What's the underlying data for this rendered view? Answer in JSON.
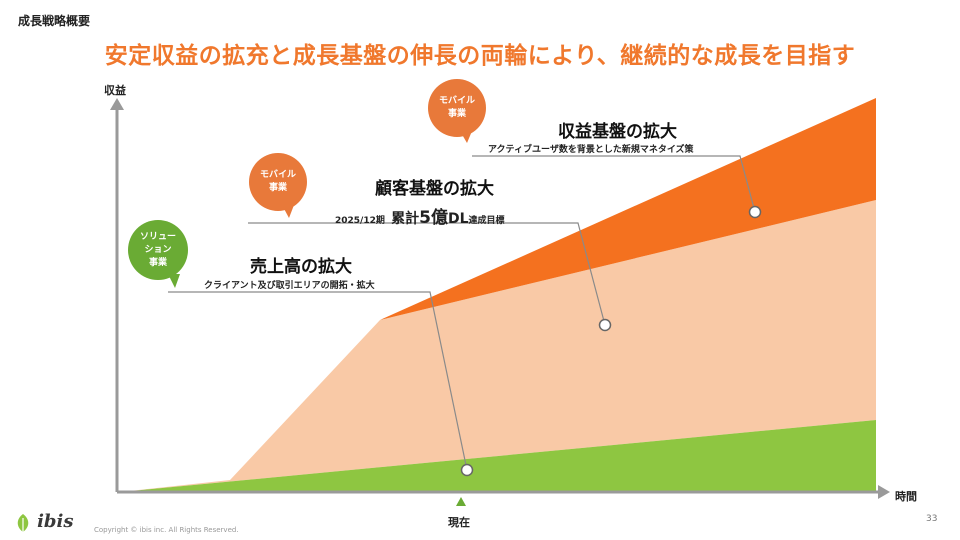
{
  "header": {
    "section": "成長戦略概要",
    "headline": "安定収益の拡充と成長基盤の伸長の両輪により、継続的な成長を目指す"
  },
  "axes": {
    "y_label": "収益",
    "x_label": "時間",
    "now_label": "現在"
  },
  "blocks": {
    "sales": {
      "title": "売上高の拡大",
      "sub": "クライアント及び取引エリアの開拓・拡大"
    },
    "customer": {
      "title": "顧客基盤の拡大",
      "dl_prefix": "2025/12期",
      "dl_mid": "累計",
      "dl_num": "5億",
      "dl_unit": "DL",
      "dl_suffix": "達成目標"
    },
    "revenue": {
      "title": "収益基盤の拡大",
      "sub": "アクティブユーザ数を背景とした新規マネタイズ策"
    }
  },
  "bubbles": {
    "solution": {
      "line1": "ソリュー",
      "line2": "ション",
      "line3": "事業"
    },
    "mobile_1": {
      "line1": "モバイル",
      "line2": "事業"
    },
    "mobile_2": {
      "line1": "モバイル",
      "line2": "事業"
    }
  },
  "colors": {
    "accent": "#f0782d",
    "green": "#8ec641",
    "peach": "#f9c9a6",
    "orange": "#f4711f",
    "bubble_green": "#6aab34",
    "bubble_orange": "#e8793a"
  },
  "footer": {
    "copyright": "Copyright © ibis inc. All Rights Reserved.",
    "logo": "ibis",
    "page": "33"
  }
}
